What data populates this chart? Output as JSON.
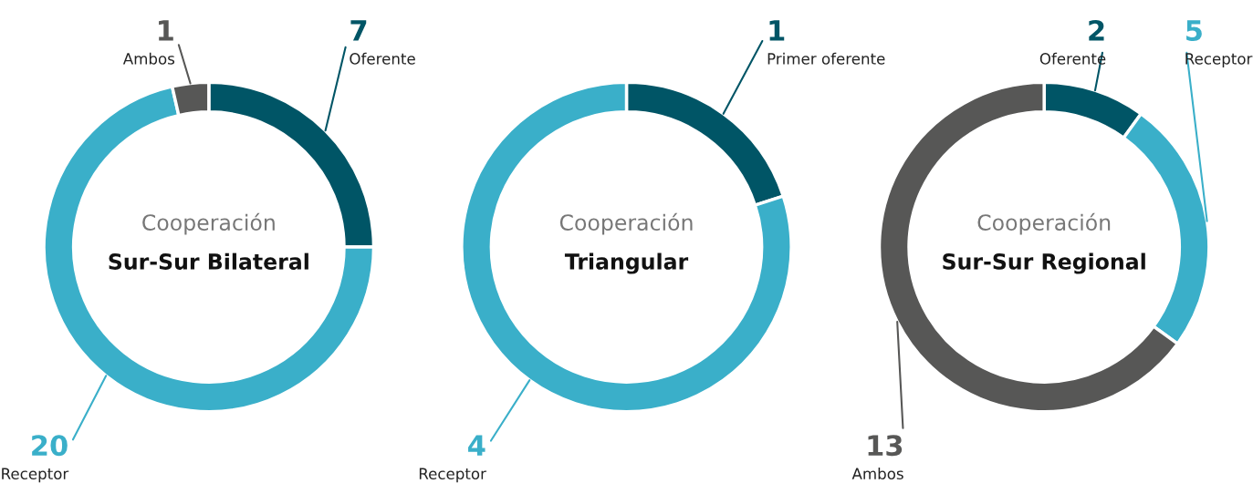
{
  "chart_data": [
    {
      "type": "donut",
      "title": "Cooperación",
      "subtitle": "Sur-Sur Bilateral",
      "categories": [
        "Oferente",
        "Receptor",
        "Ambos"
      ],
      "values": [
        7,
        20,
        1
      ],
      "colors": [
        "#005566",
        "#3aafc9",
        "#575756"
      ],
      "data_labels": true
    },
    {
      "type": "donut",
      "title": "Cooperación",
      "subtitle": "Triangular",
      "categories": [
        "Primer oferente",
        "Receptor"
      ],
      "values": [
        1,
        4
      ],
      "colors": [
        "#005566",
        "#3aafc9"
      ],
      "data_labels": true
    },
    {
      "type": "donut",
      "title": "Cooperación",
      "subtitle": "Sur-Sur Regional",
      "categories": [
        "Oferente",
        "Receptor",
        "Ambos"
      ],
      "values": [
        2,
        5,
        13
      ],
      "colors": [
        "#005566",
        "#3aafc9",
        "#575756"
      ],
      "data_labels": true
    }
  ]
}
